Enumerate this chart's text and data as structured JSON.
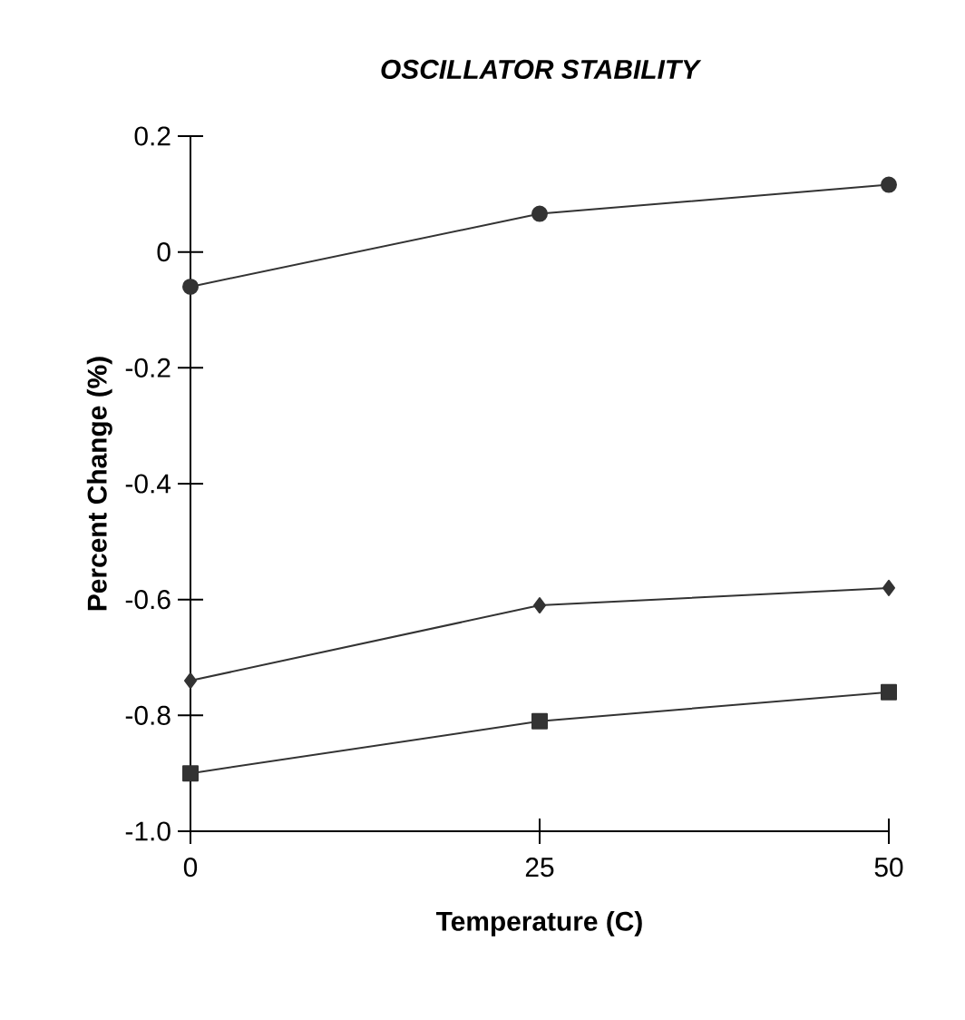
{
  "chart_data": {
    "type": "line",
    "title": "OSCILLATOR STABILITY",
    "xlabel": "Temperature (C)",
    "ylabel": "Percent Change (%)",
    "x": [
      0,
      25,
      50
    ],
    "series": [
      {
        "color": "#333333",
        "marker": "circle",
        "values": [
          -0.06,
          0.066,
          0.116
        ]
      },
      {
        "color": "#333333",
        "marker": "diamond",
        "values": [
          -0.74,
          -0.61,
          -0.58
        ]
      },
      {
        "color": "#333333",
        "marker": "square",
        "values": [
          -0.9,
          -0.81,
          -0.76
        ]
      }
    ],
    "xlim": [
      0,
      50
    ],
    "xticks": [
      0,
      25,
      50
    ],
    "ylim": [
      -1.0,
      0.2
    ],
    "yticks": [
      0.2,
      0,
      -0.2,
      -0.4,
      -0.6,
      -0.8,
      {
        "value": -1.0,
        "label": "-1.0"
      }
    ],
    "grid": false,
    "line_style": "solid"
  }
}
